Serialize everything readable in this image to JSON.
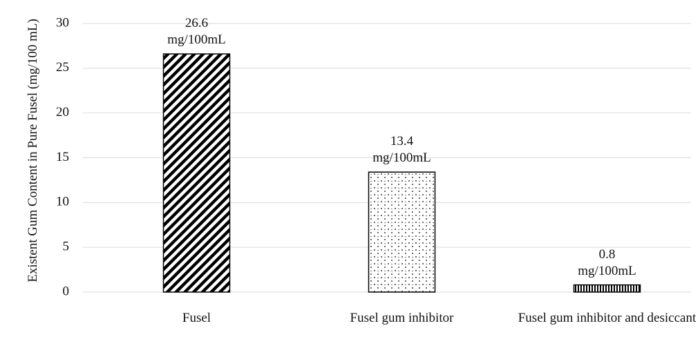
{
  "chart_data": {
    "type": "bar",
    "y_axis_label": "Existent Gum Content in Pure Fusel (mg/100 mL)",
    "categories": [
      "Fusel",
      "Fusel gum inhibitor",
      "Fusel gum inhibitor and desiccant"
    ],
    "values": [
      26.6,
      13.4,
      0.8
    ],
    "value_labels": [
      "26.6 mg/100mL",
      "13.4 mg/100mL",
      "0.8 mg/100mL"
    ],
    "color": "#000000",
    "ylim": [
      0,
      30
    ],
    "yticks": [
      0,
      5,
      10,
      15,
      20,
      25,
      30
    ],
    "grid": true
  }
}
